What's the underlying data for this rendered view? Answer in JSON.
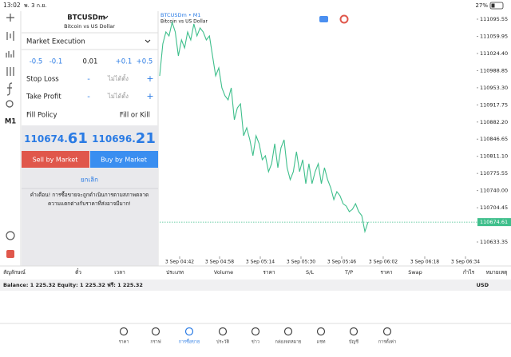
{
  "status_bar": {
    "time": "13:02",
    "date": "พ. 3 ก.ย.",
    "battery": "27%"
  },
  "sidebar": {
    "timeframe": "M1"
  },
  "order_panel": {
    "symbol": "BTCUSDm",
    "description": "Bitcoin vs US Dollar",
    "execution": "Market Execution",
    "volume_steps": [
      "-0.5",
      "-0.1",
      "0.01",
      "+0.1",
      "+0.5"
    ],
    "stop_loss": {
      "label": "Stop Loss",
      "minus": "-",
      "value": "ไม่ได้ตั้ง",
      "plus": "+"
    },
    "take_profit": {
      "label": "Take Profit",
      "minus": "-",
      "value": "ไม่ได้ตั้ง",
      "plus": "+"
    },
    "fill_policy": {
      "label": "Fill Policy",
      "value": "Fill or Kill"
    },
    "bid": {
      "main": "110674.",
      "digits": "61"
    },
    "ask": {
      "main": "110696.",
      "digits": "21"
    },
    "sell_button": "Sell by Market",
    "buy_button": "Buy by Market",
    "cancel": "ยกเลิก",
    "warning": [
      "คำเตือน! การซื้อขายจะถูกดำเนินการตามสภาพตลาด",
      "ความแตกต่างกับราคาที่ส่งอาจมีมาก!"
    ]
  },
  "chart_data": {
    "type": "line",
    "title": "BTCUSDm • M1",
    "subtitle": "Bitcoin vs US Dollar",
    "color": "#3fbf8c",
    "values": [
      110977.9,
      111044.2,
      111069.1,
      111060.8,
      111089.0,
      111069.1,
      111019.3,
      111052.5,
      111035.9,
      111069.1,
      111052.5,
      111085.6,
      111060.8,
      111077.3,
      111069.1,
      111052.5,
      111060.8,
      111019.3,
      110977.9,
      110994.5,
      110953.1,
      110936.5,
      110928.2,
      110953.1,
      110886.8,
      110911.7,
      110920.0,
      110853.7,
      110870.3,
      110845.4,
      110812.3,
      110853.7,
      110837.1,
      110804.0,
      110812.3,
      110779.1,
      110795.7,
      110837.1,
      110787.4,
      110828.8,
      110845.4,
      110787.4,
      110762.6,
      110779.1,
      110820.5,
      110779.1,
      110804.0,
      110754.3,
      110795.7,
      110754.3,
      110779.1,
      110795.7,
      110754.3,
      110787.4,
      110762.6,
      110746.0,
      110721.1,
      110737.7,
      110729.4,
      110712.9,
      110707.9,
      110696.3,
      110701.3,
      110712.9,
      110696.3,
      110688.0,
      110654.9,
      110674.61
    ],
    "last_price": 110674.61,
    "ylim": [
      110605.2,
      111112.1
    ],
    "yticks": [
      111095.55,
      111059.95,
      {
        "value": 111024.4,
        "label": "111024.40"
      },
      110988.85,
      {
        "value": 110953.3,
        "label": "110953.30"
      },
      110917.75,
      {
        "value": 110882.2,
        "label": "110882.20"
      },
      110846.65,
      {
        "value": 110811.1,
        "label": "110811.10"
      },
      110775.55,
      {
        "value": 110740,
        "label": "110740.00"
      },
      110704.45,
      110633.35
    ],
    "xlim": [
      0,
      113
    ],
    "xticks": [
      {
        "value": 6.42,
        "label": "3 Sep 04:42"
      },
      {
        "value": 19.26,
        "label": "3 Sep 04:58"
      },
      {
        "value": 32.36,
        "label": "3 Sep 05:14"
      },
      {
        "value": 45.45,
        "label": "3 Sep 05:30"
      },
      {
        "value": 58.55,
        "label": "3 Sep 05:46"
      },
      {
        "value": 71.9,
        "label": "3 Sep 06:02"
      },
      {
        "value": 85.26,
        "label": "3 Sep 06:18"
      },
      {
        "value": 98.36,
        "label": "3 Sep 06:34"
      }
    ]
  },
  "table": {
    "columns": [
      "สัญลักษณ์",
      "ตั๋ว",
      "เวลา",
      "ประเภท",
      "Volume",
      "ราคา",
      "S/L",
      "T/P",
      "ราคา",
      "Swap",
      "กำไร",
      "หมายเหตุ"
    ],
    "balance": "Balance: 1 225.32 Equity: 1 225.32 ฟรี: 1 225.32",
    "currency": "USD"
  },
  "tabs": [
    "ราคา",
    "กราฟ",
    "การซื้อขาย",
    "ประวัติ",
    "ข่าว",
    "กล่องจดหมาย",
    "แชท",
    "บัญชี",
    "การตั้งค่า"
  ]
}
